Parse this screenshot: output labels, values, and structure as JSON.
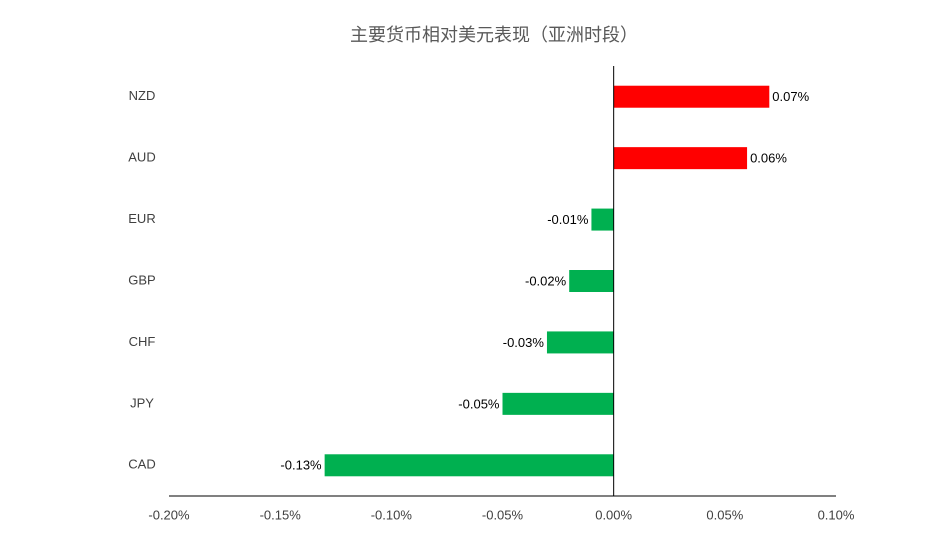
{
  "chart_data": {
    "type": "hbar",
    "title": "主要货币相对美元表现（亚洲时段）",
    "categories": [
      "NZD",
      "AUD",
      "EUR",
      "GBP",
      "CHF",
      "JPY",
      "CAD"
    ],
    "values": [
      0.07,
      0.06,
      -0.01,
      -0.02,
      -0.03,
      -0.05,
      -0.13
    ],
    "value_labels": [
      "0.07%",
      "0.06%",
      "-0.01%",
      "-0.02%",
      "-0.03%",
      "-0.05%",
      "-0.13%"
    ],
    "colors": [
      "#ff0000",
      "#ff0000",
      "#00b050",
      "#00b050",
      "#00b050",
      "#00b050",
      "#00b050"
    ],
    "xlim": [
      -0.2,
      0.1
    ],
    "xticks": [
      {
        "value": -0.2,
        "label": "-0.20%"
      },
      {
        "value": -0.15,
        "label": "-0.15%"
      },
      {
        "value": -0.1,
        "label": "-0.10%"
      },
      {
        "value": -0.05,
        "label": "-0.05%"
      },
      {
        "value": 0,
        "label": "0.00%"
      },
      {
        "value": 0.05,
        "label": "0.05%"
      },
      {
        "value": 0.1,
        "label": "0.10%"
      }
    ],
    "grid": false
  }
}
